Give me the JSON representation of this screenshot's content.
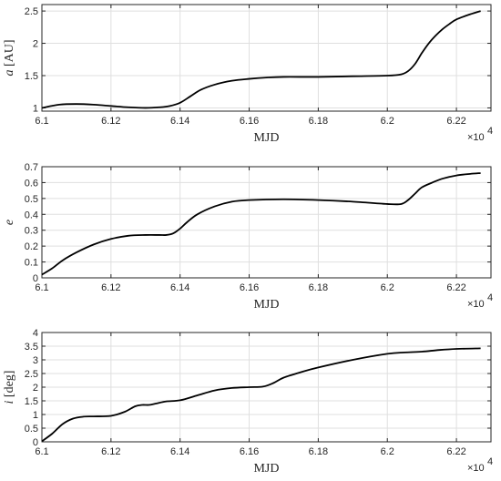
{
  "chart_data": [
    {
      "type": "line",
      "xlabel": "MJD",
      "ylabel": "a [AU]",
      "ylabel_italic": "a",
      "ylabel_rest": " [AU]",
      "x_multiplier": "×10",
      "x_multiplier_exp": "4",
      "xlim": [
        6.1,
        6.23
      ],
      "ylim": [
        0.95,
        2.6
      ],
      "xticks": [
        6.1,
        6.12,
        6.14,
        6.16,
        6.18,
        6.2,
        6.22
      ],
      "xtick_labels": [
        "6.1",
        "6.12",
        "6.14",
        "6.16",
        "6.18",
        "6.2",
        "6.22"
      ],
      "yticks": [
        1,
        1.5,
        2,
        2.5
      ],
      "ytick_labels": [
        "1",
        "1.5",
        "2",
        "2.5"
      ],
      "grid": true,
      "series": [
        {
          "x": [
            6.1,
            6.105,
            6.11,
            6.115,
            6.12,
            6.125,
            6.13,
            6.134,
            6.137,
            6.14,
            6.143,
            6.146,
            6.15,
            6.155,
            6.16,
            6.165,
            6.17,
            6.18,
            6.19,
            6.2,
            6.204,
            6.206,
            6.208,
            6.21,
            6.212,
            6.214,
            6.216,
            6.218,
            6.22,
            6.224,
            6.227
          ],
          "y": [
            1.0,
            1.05,
            1.06,
            1.05,
            1.03,
            1.01,
            1.0,
            1.01,
            1.03,
            1.08,
            1.18,
            1.28,
            1.36,
            1.42,
            1.45,
            1.47,
            1.48,
            1.48,
            1.49,
            1.5,
            1.52,
            1.57,
            1.68,
            1.85,
            2.0,
            2.12,
            2.22,
            2.3,
            2.37,
            2.45,
            2.5
          ]
        }
      ]
    },
    {
      "type": "line",
      "xlabel": "MJD",
      "ylabel": "e",
      "ylabel_italic": "e",
      "ylabel_rest": "",
      "x_multiplier": "×10",
      "x_multiplier_exp": "4",
      "xlim": [
        6.1,
        6.23
      ],
      "ylim": [
        0,
        0.7
      ],
      "xticks": [
        6.1,
        6.12,
        6.14,
        6.16,
        6.18,
        6.2,
        6.22
      ],
      "xtick_labels": [
        "6.1",
        "6.12",
        "6.14",
        "6.16",
        "6.18",
        "6.2",
        "6.22"
      ],
      "yticks": [
        0,
        0.1,
        0.2,
        0.3,
        0.4,
        0.5,
        0.6,
        0.7
      ],
      "ytick_labels": [
        "0",
        "0.1",
        "0.2",
        "0.3",
        "0.4",
        "0.5",
        "0.6",
        "0.7"
      ],
      "grid": true,
      "series": [
        {
          "x": [
            6.1,
            6.103,
            6.106,
            6.11,
            6.115,
            6.12,
            6.125,
            6.13,
            6.134,
            6.136,
            6.138,
            6.14,
            6.142,
            6.145,
            6.15,
            6.155,
            6.16,
            6.17,
            6.18,
            6.19,
            6.2,
            6.204,
            6.206,
            6.208,
            6.21,
            6.213,
            6.216,
            6.22,
            6.224,
            6.227
          ],
          "y": [
            0.02,
            0.06,
            0.11,
            0.16,
            0.21,
            0.245,
            0.265,
            0.27,
            0.27,
            0.27,
            0.28,
            0.31,
            0.35,
            0.4,
            0.45,
            0.48,
            0.49,
            0.495,
            0.49,
            0.48,
            0.465,
            0.465,
            0.49,
            0.53,
            0.57,
            0.6,
            0.625,
            0.645,
            0.655,
            0.66
          ]
        }
      ]
    },
    {
      "type": "line",
      "xlabel": "MJD",
      "ylabel": "i [deg]",
      "ylabel_italic": "i",
      "ylabel_rest": " [deg]",
      "x_multiplier": "×10",
      "x_multiplier_exp": "4",
      "xlim": [
        6.1,
        6.23
      ],
      "ylim": [
        0,
        4
      ],
      "xticks": [
        6.1,
        6.12,
        6.14,
        6.16,
        6.18,
        6.2,
        6.22
      ],
      "xtick_labels": [
        "6.1",
        "6.12",
        "6.14",
        "6.16",
        "6.18",
        "6.2",
        "6.22"
      ],
      "yticks": [
        0,
        0.5,
        1,
        1.5,
        2,
        2.5,
        3,
        3.5,
        4
      ],
      "ytick_labels": [
        "0",
        "0.5",
        "1",
        "1.5",
        "2",
        "2.5",
        "3",
        "3.5",
        "4"
      ],
      "grid": true,
      "series": [
        {
          "x": [
            6.1,
            6.103,
            6.106,
            6.109,
            6.112,
            6.115,
            6.12,
            6.124,
            6.127,
            6.129,
            6.131,
            6.133,
            6.136,
            6.14,
            6.145,
            6.15,
            6.155,
            6.16,
            6.164,
            6.167,
            6.17,
            6.175,
            6.18,
            6.19,
            6.2,
            6.205,
            6.21,
            6.215,
            6.22,
            6.227
          ],
          "y": [
            0.02,
            0.3,
            0.65,
            0.85,
            0.92,
            0.93,
            0.95,
            1.1,
            1.3,
            1.35,
            1.35,
            1.4,
            1.48,
            1.52,
            1.7,
            1.88,
            1.97,
            2.0,
            2.02,
            2.15,
            2.35,
            2.55,
            2.72,
            3.0,
            3.22,
            3.27,
            3.3,
            3.36,
            3.4,
            3.42
          ]
        }
      ]
    }
  ]
}
